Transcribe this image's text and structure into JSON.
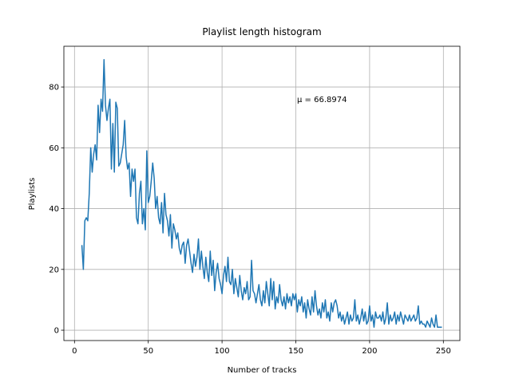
{
  "chart_data": {
    "type": "line",
    "title": "Playlist length histogram",
    "xlabel": "Number of tracks",
    "ylabel": "Playlists",
    "annotation": "μ = 66.8974",
    "color": "#1f77b4",
    "grid": true,
    "xlim": [
      -7.2,
      261.2
    ],
    "ylim": [
      -3.4,
      93.4
    ],
    "xticks": [
      0,
      50,
      100,
      150,
      200,
      250
    ],
    "yticks": [
      0,
      20,
      40,
      60,
      80
    ],
    "x": [
      5,
      6,
      7,
      8,
      9,
      10,
      11,
      12,
      13,
      14,
      15,
      16,
      17,
      18,
      19,
      20,
      21,
      22,
      23,
      24,
      25,
      26,
      27,
      28,
      29,
      30,
      31,
      32,
      33,
      34,
      35,
      36,
      37,
      38,
      39,
      40,
      41,
      42,
      43,
      44,
      45,
      46,
      47,
      48,
      49,
      50,
      51,
      52,
      53,
      54,
      55,
      56,
      57,
      58,
      59,
      60,
      61,
      62,
      63,
      64,
      65,
      66,
      67,
      68,
      69,
      70,
      71,
      72,
      73,
      74,
      75,
      76,
      77,
      78,
      79,
      80,
      81,
      82,
      83,
      84,
      85,
      86,
      87,
      88,
      89,
      90,
      91,
      92,
      93,
      94,
      95,
      96,
      97,
      98,
      99,
      100,
      101,
      102,
      103,
      104,
      105,
      106,
      107,
      108,
      109,
      110,
      111,
      112,
      113,
      114,
      115,
      116,
      117,
      118,
      119,
      120,
      121,
      122,
      123,
      124,
      125,
      126,
      127,
      128,
      129,
      130,
      131,
      132,
      133,
      134,
      135,
      136,
      137,
      138,
      139,
      140,
      141,
      142,
      143,
      144,
      145,
      146,
      147,
      148,
      149,
      150,
      151,
      152,
      153,
      154,
      155,
      156,
      157,
      158,
      159,
      160,
      161,
      162,
      163,
      164,
      165,
      166,
      167,
      168,
      169,
      170,
      171,
      172,
      173,
      174,
      175,
      176,
      177,
      178,
      179,
      180,
      181,
      182,
      183,
      184,
      185,
      186,
      187,
      188,
      189,
      190,
      191,
      192,
      193,
      194,
      195,
      196,
      197,
      198,
      199,
      200,
      201,
      202,
      203,
      204,
      205,
      206,
      207,
      208,
      209,
      210,
      211,
      212,
      213,
      214,
      215,
      216,
      217,
      218,
      219,
      220,
      221,
      222,
      223,
      224,
      225,
      226,
      227,
      228,
      229,
      230,
      231,
      232,
      233,
      234,
      235,
      236,
      237,
      238,
      239,
      240,
      241,
      242,
      243,
      244,
      245,
      246,
      247,
      248,
      249
    ],
    "values": [
      28,
      20,
      36,
      37,
      36,
      45,
      60,
      52,
      58,
      61,
      56,
      74,
      65,
      76,
      72,
      89,
      74,
      69,
      73,
      76,
      53,
      68,
      52,
      75,
      73,
      54,
      55,
      58,
      61,
      69,
      57,
      53,
      55,
      44,
      53,
      49,
      53,
      37,
      35,
      45,
      49,
      35,
      40,
      33,
      59,
      42,
      44,
      49,
      55,
      50,
      40,
      44,
      37,
      35,
      42,
      32,
      45,
      38,
      36,
      31,
      38,
      27,
      35,
      33,
      30,
      32,
      27,
      25,
      28,
      29,
      22,
      28,
      30,
      26,
      22,
      19,
      25,
      21,
      24,
      30,
      20,
      26,
      21,
      17,
      24,
      19,
      16,
      26,
      18,
      23,
      13,
      19,
      22,
      17,
      15,
      12,
      18,
      21,
      16,
      24,
      16,
      15,
      20,
      12,
      17,
      14,
      11,
      18,
      13,
      10,
      14,
      12,
      16,
      10,
      11,
      23,
      13,
      12,
      9,
      12,
      15,
      10,
      8,
      13,
      9,
      16,
      12,
      8,
      17,
      10,
      16,
      7,
      11,
      9,
      15,
      10,
      8,
      11,
      7,
      12,
      9,
      11,
      8,
      12,
      10,
      12,
      6,
      10,
      8,
      11,
      6,
      9,
      4,
      10,
      7,
      5,
      11,
      6,
      13,
      8,
      5,
      7,
      4,
      9,
      6,
      10,
      4,
      6,
      3,
      9,
      6,
      9,
      10,
      8,
      4,
      6,
      3,
      5,
      2,
      4,
      6,
      2,
      5,
      3,
      4,
      10,
      3,
      5,
      2,
      4,
      7,
      3,
      6,
      2,
      3,
      8,
      3,
      5,
      1,
      6,
      4,
      4,
      5,
      3,
      6,
      2,
      4,
      9,
      2,
      5,
      3,
      4,
      6,
      2,
      5,
      3,
      6,
      4,
      2,
      5,
      4,
      3,
      5,
      3,
      4,
      5,
      3,
      4,
      8,
      2,
      3,
      2,
      2,
      1,
      3,
      2,
      1,
      4,
      2,
      1,
      5,
      1,
      1,
      1,
      1
    ]
  }
}
